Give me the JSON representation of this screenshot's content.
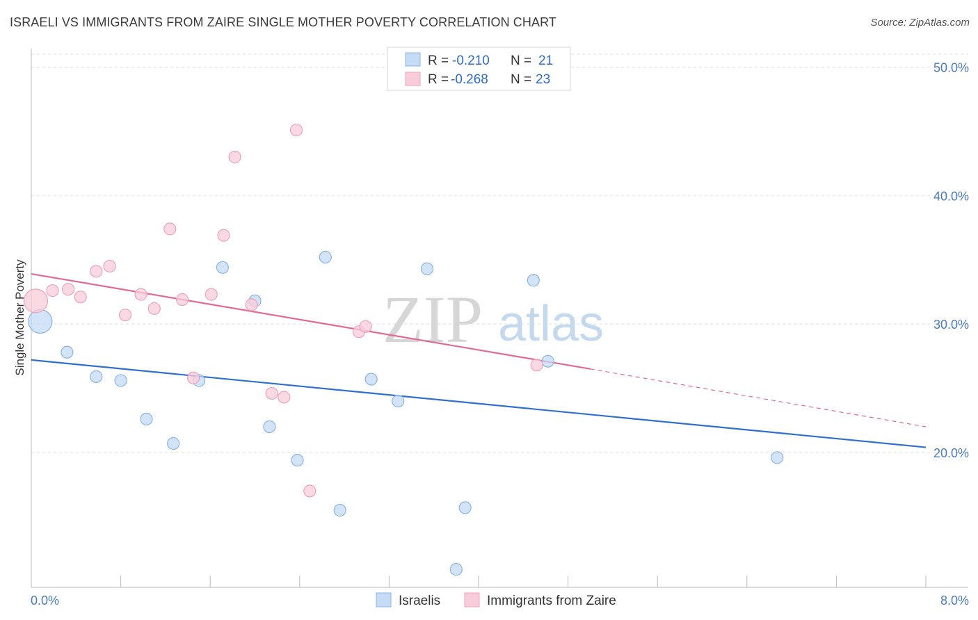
{
  "title": "ISRAELI VS IMMIGRANTS FROM ZAIRE SINGLE MOTHER POVERTY CORRELATION CHART",
  "source": "Source: ZipAtlas.com",
  "watermark": {
    "zip": "ZIP",
    "atlas": "atlas"
  },
  "colors": {
    "blue_fill": "#c6dbf5",
    "blue_stroke": "#8ab4e6",
    "blue_line": "#2f6fd0",
    "pink_fill": "#f9ccd9",
    "pink_stroke": "#eda3bb",
    "pink_line": "#e06a93",
    "grid": "#dddddd",
    "tick_text": "#4a7cc4"
  },
  "legend": {
    "r_label": "R =",
    "n_label": "N =",
    "rows": [
      {
        "series": "Israelis",
        "r": "-0.210",
        "n": "21"
      },
      {
        "series": "Immigrants from Zaire",
        "r": "-0.268",
        "n": "23"
      }
    ]
  },
  "chart_data": {
    "type": "scatter",
    "title": "ISRAELI VS IMMIGRANTS FROM ZAIRE SINGLE MOTHER POVERTY CORRELATION CHART",
    "xlabel": "",
    "ylabel": "Single Mother Poverty",
    "xlim": [
      0,
      8
    ],
    "ylim": [
      9.5,
      51
    ],
    "x_tick_labels": [
      "0.0%",
      "8.0%"
    ],
    "y_ticks": [
      20,
      30,
      40,
      50
    ],
    "y_tick_labels": [
      "20.0%",
      "30.0%",
      "40.0%",
      "50.0%"
    ],
    "legend_position": "bottom-center",
    "series": [
      {
        "name": "Israelis",
        "color": "blue",
        "points": [
          {
            "x": 0.08,
            "y": 30.2,
            "size": "large"
          },
          {
            "x": 0.32,
            "y": 27.8
          },
          {
            "x": 0.58,
            "y": 25.9
          },
          {
            "x": 0.8,
            "y": 25.6
          },
          {
            "x": 1.03,
            "y": 22.6
          },
          {
            "x": 1.27,
            "y": 20.7
          },
          {
            "x": 1.5,
            "y": 25.6
          },
          {
            "x": 1.71,
            "y": 34.4
          },
          {
            "x": 2.0,
            "y": 31.8
          },
          {
            "x": 2.13,
            "y": 22.0
          },
          {
            "x": 2.38,
            "y": 19.4
          },
          {
            "x": 2.63,
            "y": 35.2
          },
          {
            "x": 2.76,
            "y": 15.5
          },
          {
            "x": 3.04,
            "y": 25.7
          },
          {
            "x": 3.28,
            "y": 24.0
          },
          {
            "x": 3.54,
            "y": 34.3
          },
          {
            "x": 3.8,
            "y": 10.9
          },
          {
            "x": 3.88,
            "y": 15.7
          },
          {
            "x": 4.49,
            "y": 33.4
          },
          {
            "x": 4.62,
            "y": 27.1
          },
          {
            "x": 6.67,
            "y": 19.6
          }
        ],
        "trend": {
          "x": [
            0,
            8
          ],
          "y": [
            27.2,
            20.4
          ]
        }
      },
      {
        "name": "Immigrants from Zaire",
        "color": "pink",
        "points": [
          {
            "x": 0.04,
            "y": 31.8,
            "size": "large"
          },
          {
            "x": 0.19,
            "y": 32.6
          },
          {
            "x": 0.33,
            "y": 32.7
          },
          {
            "x": 0.44,
            "y": 32.1
          },
          {
            "x": 0.58,
            "y": 34.1
          },
          {
            "x": 0.7,
            "y": 34.5
          },
          {
            "x": 0.84,
            "y": 30.7
          },
          {
            "x": 0.98,
            "y": 32.3
          },
          {
            "x": 1.1,
            "y": 31.2
          },
          {
            "x": 1.24,
            "y": 37.4
          },
          {
            "x": 1.35,
            "y": 31.9
          },
          {
            "x": 1.45,
            "y": 25.8
          },
          {
            "x": 1.61,
            "y": 32.3
          },
          {
            "x": 1.72,
            "y": 36.9
          },
          {
            "x": 1.82,
            "y": 43.0
          },
          {
            "x": 1.97,
            "y": 31.5
          },
          {
            "x": 2.15,
            "y": 24.6
          },
          {
            "x": 2.26,
            "y": 24.3
          },
          {
            "x": 2.37,
            "y": 45.1
          },
          {
            "x": 2.49,
            "y": 17.0
          },
          {
            "x": 2.93,
            "y": 29.4
          },
          {
            "x": 2.99,
            "y": 29.8
          },
          {
            "x": 4.52,
            "y": 26.8
          }
        ],
        "trend": {
          "x": [
            0,
            5.0
          ],
          "y": [
            33.9,
            26.5
          ]
        },
        "trend_extension": {
          "x": [
            5.0,
            8
          ],
          "y": [
            26.5,
            22.0
          ]
        }
      }
    ]
  }
}
